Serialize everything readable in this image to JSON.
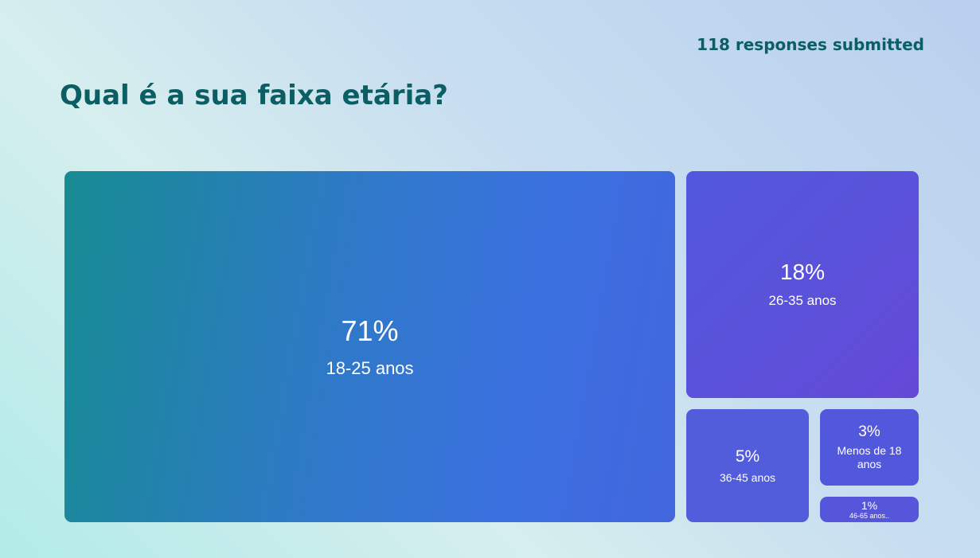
{
  "header": {
    "responses": "118 responses submitted"
  },
  "question": {
    "title": "Qual é a sua faixa etária?"
  },
  "chart_data": {
    "type": "treemap",
    "items": [
      {
        "label": "18-25 anos",
        "value": 71,
        "pct_text": "71%"
      },
      {
        "label": "26-35 anos",
        "value": 18,
        "pct_text": "18%"
      },
      {
        "label": "36-45 anos",
        "value": 5,
        "pct_text": "5%"
      },
      {
        "label": "Menos de 18 anos",
        "value": 3,
        "pct_text": "3%"
      },
      {
        "label": "46-65 anos..",
        "value": 1,
        "pct_text": "1%"
      }
    ]
  }
}
